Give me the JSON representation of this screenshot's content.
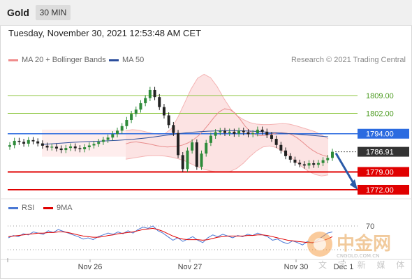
{
  "header": {
    "symbol": "Gold",
    "timeframe": "30 MIN"
  },
  "timestamp": "Tuesday, November 30, 2021 12:53:48 AM CET",
  "legend": [
    {
      "label": "MA 20 + Bollinger Bands",
      "color": "#f08c8c"
    },
    {
      "label": "MA 50",
      "color": "#2a4d9c"
    }
  ],
  "credit": "Research © 2021 Trading Central",
  "rsi_legend": [
    {
      "label": "RSI",
      "color": "#4a78d4"
    },
    {
      "label": "9MA",
      "color": "#e00000"
    }
  ],
  "levels": [
    {
      "label": "1809.00",
      "type": "resistance",
      "color": "#8cc63f"
    },
    {
      "label": "1802.00",
      "type": "resistance",
      "color": "#8cc63f"
    },
    {
      "label": "1794.00",
      "type": "pivot",
      "color": "#2b6be0"
    },
    {
      "label": "1786.91",
      "type": "current",
      "color": "#333333"
    },
    {
      "label": "1779.00",
      "type": "support",
      "color": "#e00000"
    },
    {
      "label": "1772.00",
      "type": "support",
      "color": "#e00000"
    }
  ],
  "rsi_level_label": "70",
  "x_labels": [
    "Nov 26",
    "Nov 27",
    "Nov 30",
    "Dec 1"
  ],
  "watermark": {
    "cn": "中金网",
    "en": "CNGOLD.COM.CN",
    "sub": "文 字 新 媒 体"
  },
  "chart_data": {
    "type": "candlestick",
    "title": "Gold 30 MIN",
    "y_ticks": [
      1809,
      1802,
      1794,
      1786.91,
      1779,
      1772
    ],
    "x": [
      "Nov 26",
      "Nov 27",
      "Nov 30",
      "Dec 1"
    ],
    "closes": [
      1789.5,
      1791.2,
      1790.8,
      1790.1,
      1791.5,
      1791.0,
      1790.2,
      1789.3,
      1788.6,
      1788.9,
      1788.2,
      1787.6,
      1788.4,
      1789.0,
      1788.3,
      1787.9,
      1788.7,
      1789.4,
      1790.0,
      1790.8,
      1791.6,
      1792.5,
      1793.8,
      1795.2,
      1797.0,
      1799.4,
      1801.8,
      1803.5,
      1806.0,
      1808.0,
      1811.2,
      1808.4,
      1804.5,
      1801.2,
      1797.4,
      1794.3,
      1785.6,
      1780.1,
      1787.4,
      1790.6,
      1781.0,
      1786.2,
      1790.4,
      1793.2,
      1794.6,
      1795.1,
      1794.3,
      1794.8,
      1794.0,
      1795.2,
      1794.6,
      1793.8,
      1794.2,
      1795.6,
      1794.8,
      1793.5,
      1792.0,
      1789.6,
      1787.4,
      1785.2,
      1783.8,
      1782.6,
      1782.0,
      1781.5,
      1782.4,
      1781.8,
      1782.5,
      1783.6,
      1784.5,
      1786.9
    ],
    "bollinger_mid": [
      1790.0,
      1790.6,
      1790.8,
      1790.5,
      1790.2,
      1789.8,
      1789.3,
      1789.0,
      1788.8,
      1788.9,
      1789.1,
      1789.6,
      1790.4,
      1791.6,
      1793.2,
      1795.3,
      1797.8,
      1800.4,
      1802.6,
      1803.8,
      1803.6,
      1802.2,
      1799.8,
      1797.0,
      1794.8,
      1793.6,
      1793.2,
      1793.4,
      1793.8,
      1794.2,
      1794.4,
      1794.2,
      1793.6,
      1792.4,
      1790.8,
      1789.0,
      1787.5,
      1786.3,
      1785.5,
      1785.0
    ],
    "bollinger_upper": [
      1795.2,
      1795.6,
      1795.4,
      1794.8,
      1794.2,
      1793.8,
      1794.0,
      1796.0,
      1800.5,
      1806.0,
      1811.5,
      1815.8,
      1817.4,
      1816.0,
      1812.5,
      1808.0,
      1804.0,
      1801.2,
      1799.6,
      1798.4,
      1797.8,
      1797.6,
      1797.6,
      1797.8,
      1798.0,
      1797.8,
      1797.2,
      1796.4,
      1795.6,
      1794.8,
      1793.5,
      1792.0
    ],
    "bollinger_lower": [
      1784.0,
      1784.4,
      1784.8,
      1785.2,
      1785.4,
      1785.4,
      1785.2,
      1784.8,
      1784.2,
      1783.4,
      1782.2,
      1781.0,
      1780.0,
      1779.4,
      1779.0,
      1778.9,
      1779.2,
      1780.4,
      1782.4,
      1785.0,
      1787.2,
      1788.8,
      1789.2,
      1788.6,
      1787.2,
      1785.4,
      1783.2,
      1781.0,
      1779.2,
      1778.0,
      1777.4,
      1777.8
    ],
    "ma50": [
      1789.8,
      1790.2,
      1790.6,
      1790.9,
      1791.1,
      1791.4,
      1791.8,
      1792.4,
      1793.2,
      1794.0,
      1794.6,
      1795.0,
      1795.2,
      1795.2,
      1795.0,
      1794.6,
      1794.2,
      1793.8,
      1793.3,
      1792.8
    ],
    "rsi": [
      50,
      54,
      52,
      57,
      55,
      60,
      58,
      56,
      62,
      59,
      64,
      61,
      58,
      55,
      52,
      48,
      50,
      47,
      52,
      55,
      58,
      56,
      60,
      57,
      62,
      58,
      64,
      68,
      66,
      70,
      62,
      58,
      52,
      46,
      50,
      44,
      48,
      52,
      46,
      42,
      50,
      55,
      52,
      56,
      53,
      50,
      54,
      52,
      56,
      54,
      58,
      55,
      52,
      46,
      48,
      43,
      40,
      45,
      42,
      38,
      44,
      41,
      46,
      52,
      58,
      60
    ],
    "rsi_ma": [
      52,
      53,
      54,
      55,
      56,
      57,
      58,
      58,
      59,
      59,
      60,
      60,
      59,
      57,
      55,
      53,
      52,
      51,
      51,
      52,
      54,
      55,
      57,
      58,
      59,
      60,
      62,
      64,
      65,
      66,
      64,
      61,
      57,
      53,
      50,
      48,
      47,
      47,
      47,
      46,
      47,
      49,
      51,
      52,
      53,
      53,
      53,
      53,
      54,
      54,
      55,
      55,
      54,
      52,
      50,
      48,
      46,
      45,
      44,
      43,
      42,
      42,
      43,
      45,
      48,
      52
    ],
    "rsi_levels": [
      70,
      30
    ],
    "projection": {
      "from": 1786.9,
      "to": 1772.0
    }
  }
}
